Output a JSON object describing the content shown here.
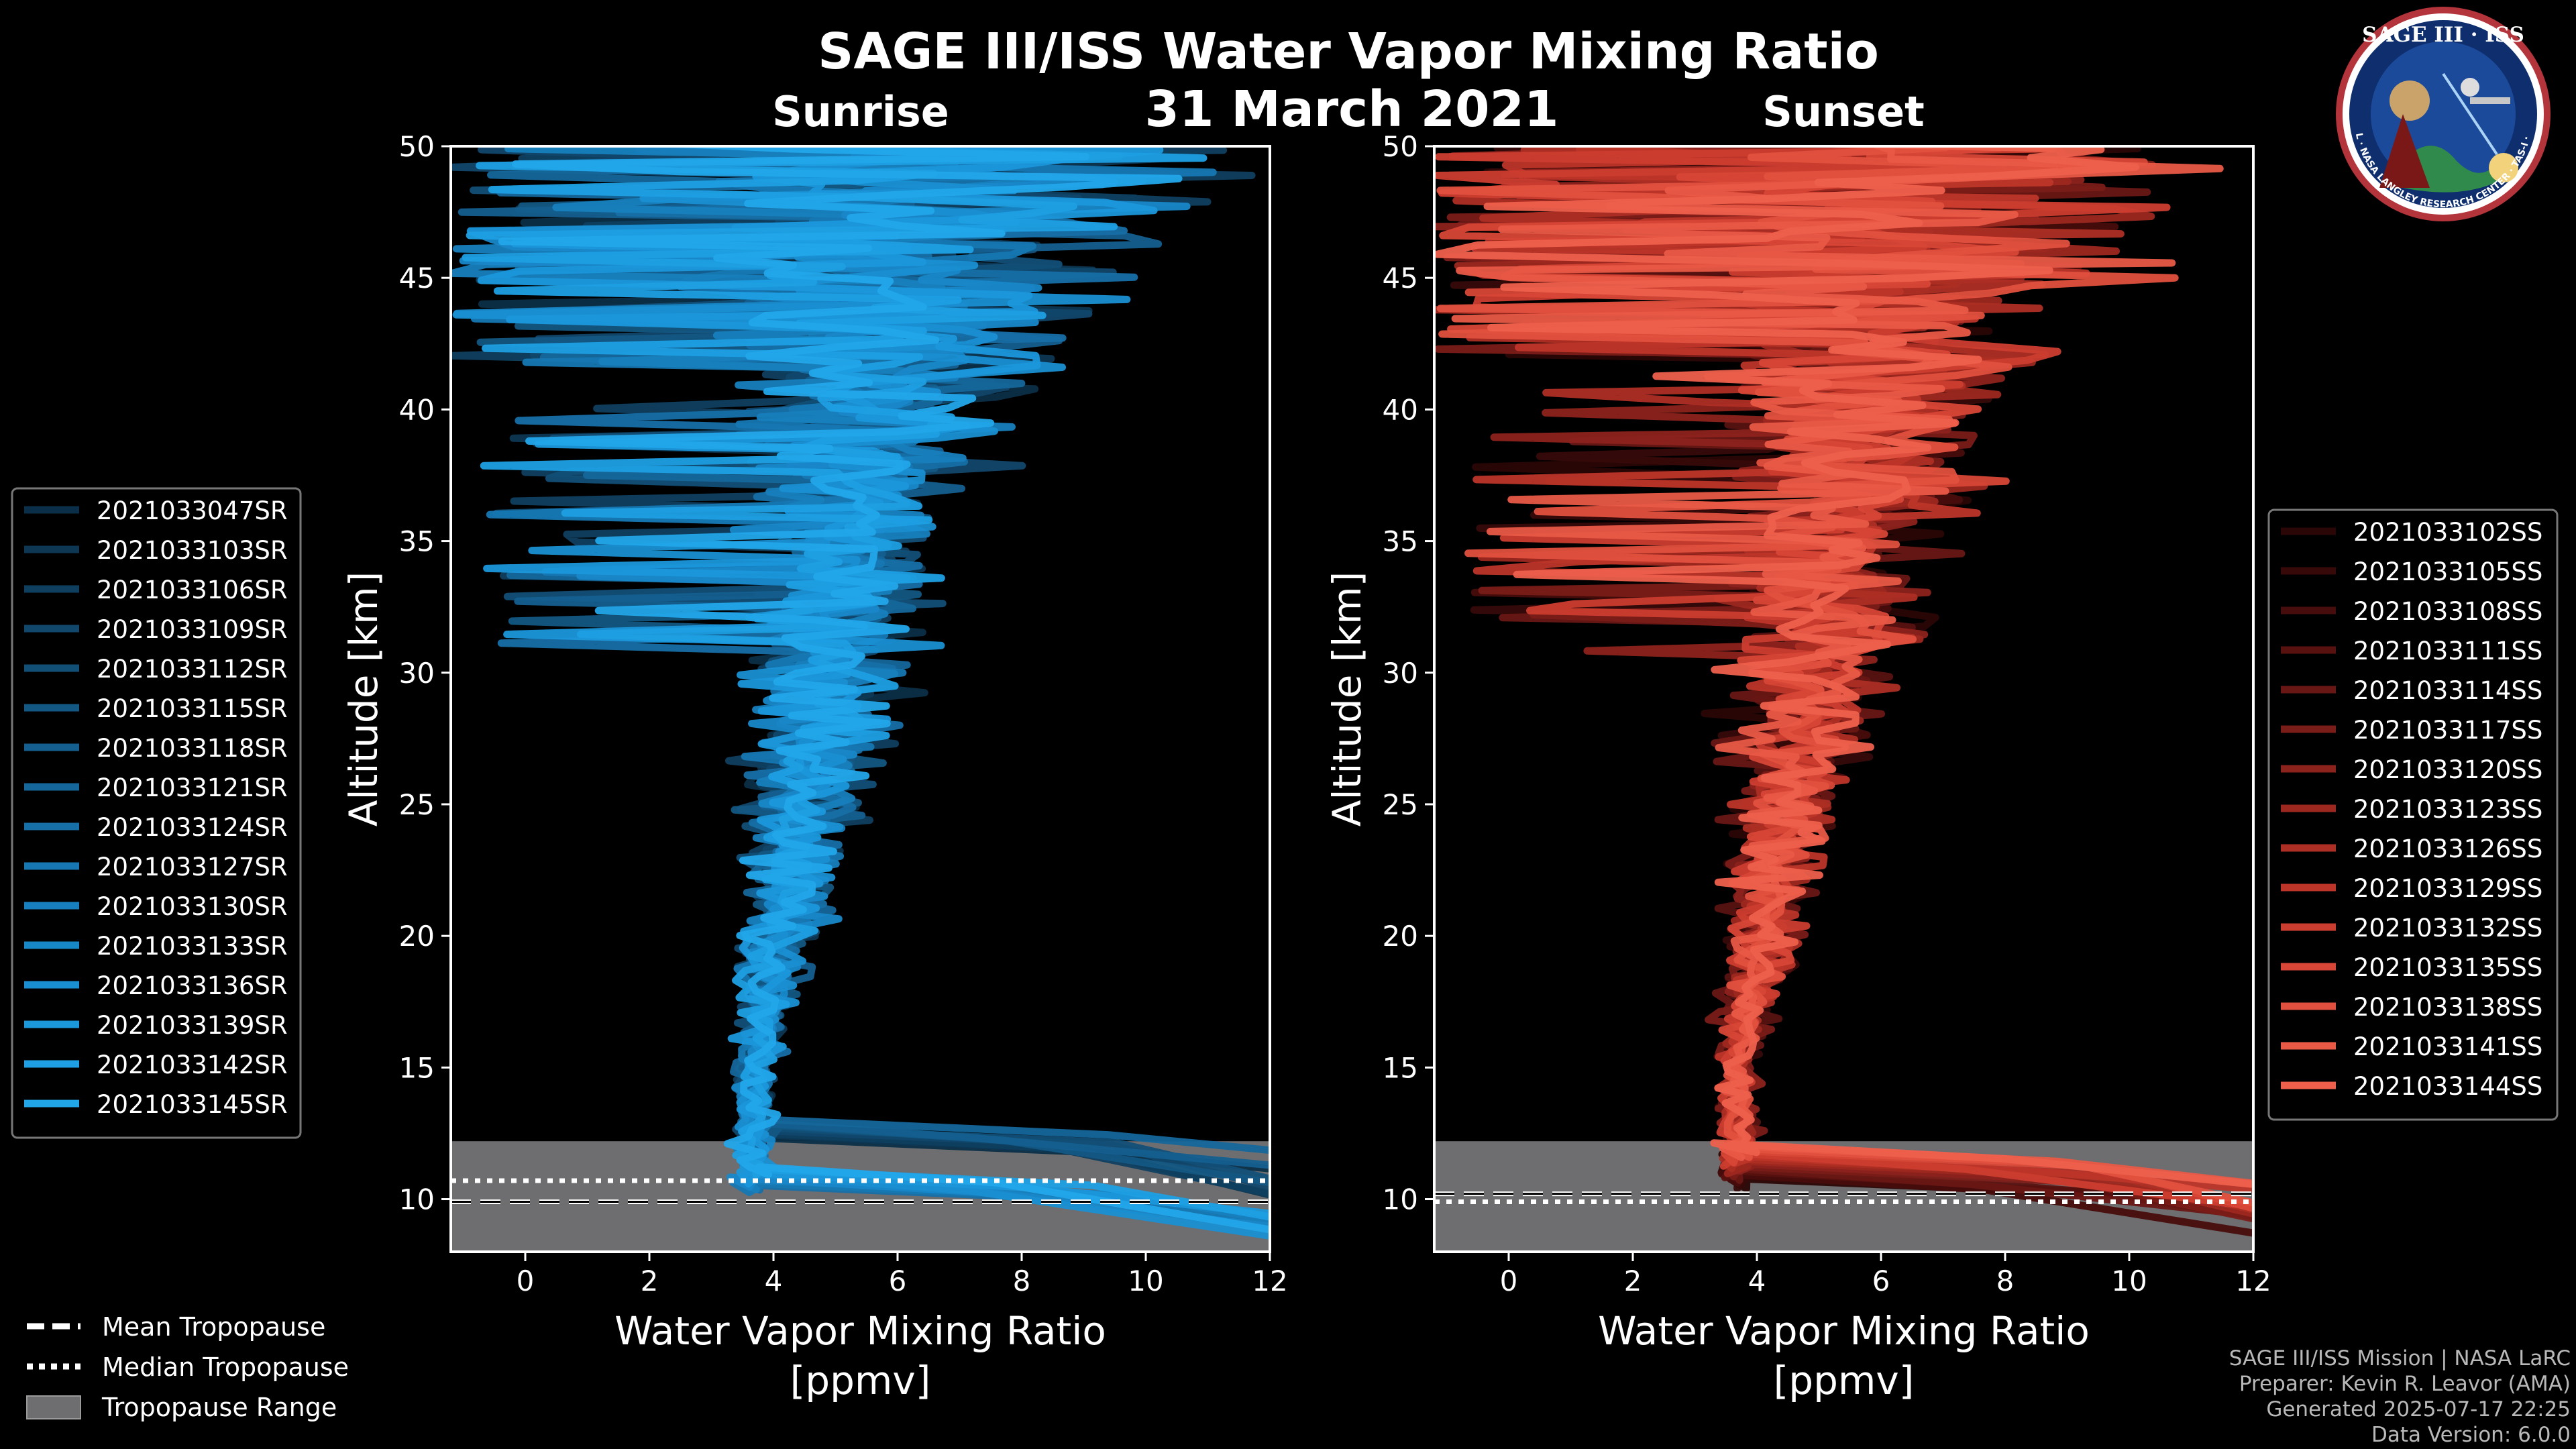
{
  "figure": {
    "title": "SAGE III/ISS Water Vapor Mixing Ratio",
    "date": "31 March 2021",
    "logo": {
      "top_text": "SAGE III · ISS",
      "ring_text": "BALL · NASA LANGLEY RESEARCH CENTER · TAS-I · ESA"
    },
    "credits": [
      "SAGE III/ISS Mission | NASA LaRC",
      "Preparer: Kevin R. Leavor (AMA)",
      "Generated 2025-07-17 22:25",
      "Data Version: 6.0.0"
    ]
  },
  "bottom_legend": [
    {
      "label": "Mean Tropopause",
      "style": "dashed"
    },
    {
      "label": "Median Tropopause",
      "style": "dotted"
    },
    {
      "label": "Tropopause Range",
      "style": "patch"
    }
  ],
  "colors": {
    "background": "#000000",
    "sunrise": "#1a8fd6",
    "sunset": "#ee5a48",
    "tropopause_fill": "#6e6e70",
    "axes": "#ffffff"
  },
  "chart_data": [
    {
      "type": "line",
      "panel_title": "Sunrise",
      "xlabel": "Water Vapor Mixing Ratio\n[ppmv]",
      "ylabel": "Altitude [km]",
      "xlim": [
        -1.2,
        12
      ],
      "ylim": [
        8,
        50
      ],
      "xticks": [
        0,
        2,
        4,
        6,
        8,
        10,
        12
      ],
      "yticks": [
        10,
        15,
        20,
        25,
        30,
        35,
        40,
        45,
        50
      ],
      "tropopause": {
        "range": [
          8,
          12.2
        ],
        "mean": 9.9,
        "median": 10.7
      },
      "series": [
        {
          "name": "2021033047SR",
          "color": "#0b2f48"
        },
        {
          "name": "2021033103SR",
          "color": "#0d3753"
        },
        {
          "name": "2021033106SR",
          "color": "#0f3f5f"
        },
        {
          "name": "2021033109SR",
          "color": "#11476b"
        },
        {
          "name": "2021033112SR",
          "color": "#124f77"
        },
        {
          "name": "2021033115SR",
          "color": "#135783"
        },
        {
          "name": "2021033118SR",
          "color": "#145f8f"
        },
        {
          "name": "2021033121SR",
          "color": "#15679b"
        },
        {
          "name": "2021033124SR",
          "color": "#166fa7"
        },
        {
          "name": "2021033127SR",
          "color": "#1677b2"
        },
        {
          "name": "2021033130SR",
          "color": "#177fbd"
        },
        {
          "name": "2021033133SR",
          "color": "#1887c8"
        },
        {
          "name": "2021033136SR",
          "color": "#198fd2"
        },
        {
          "name": "2021033139SR",
          "color": "#1b97db"
        },
        {
          "name": "2021033142SR",
          "color": "#1e9fe3"
        },
        {
          "name": "2021033145SR",
          "color": "#22a6ea"
        }
      ]
    },
    {
      "type": "line",
      "panel_title": "Sunset",
      "xlabel": "Water Vapor Mixing Ratio\n[ppmv]",
      "ylabel": "Altitude [km]",
      "xlim": [
        -1.2,
        12
      ],
      "ylim": [
        8,
        50
      ],
      "xticks": [
        0,
        2,
        4,
        6,
        8,
        10,
        12
      ],
      "yticks": [
        10,
        15,
        20,
        25,
        30,
        35,
        40,
        45,
        50
      ],
      "tropopause": {
        "range": [
          8,
          12.2
        ],
        "mean": 10.2,
        "median": 9.9
      },
      "series": [
        {
          "name": "2021033102SS",
          "color": "#2a0606"
        },
        {
          "name": "2021033105SS",
          "color": "#370909"
        },
        {
          "name": "2021033108SS",
          "color": "#470d0c"
        },
        {
          "name": "2021033111SS",
          "color": "#571210"
        },
        {
          "name": "2021033114SS",
          "color": "#681714"
        },
        {
          "name": "2021033117SS",
          "color": "#7a1c18"
        },
        {
          "name": "2021033120SS",
          "color": "#8c221c"
        },
        {
          "name": "2021033123SS",
          "color": "#9d2820"
        },
        {
          "name": "2021033126SS",
          "color": "#ad2e24"
        },
        {
          "name": "2021033129SS",
          "color": "#bd3529"
        },
        {
          "name": "2021033132SS",
          "color": "#cb3d2f"
        },
        {
          "name": "2021033135SS",
          "color": "#d74636"
        },
        {
          "name": "2021033138SS",
          "color": "#e1503e"
        },
        {
          "name": "2021033141SS",
          "color": "#e85946"
        },
        {
          "name": "2021033144SS",
          "color": "#ee604c"
        }
      ]
    }
  ]
}
